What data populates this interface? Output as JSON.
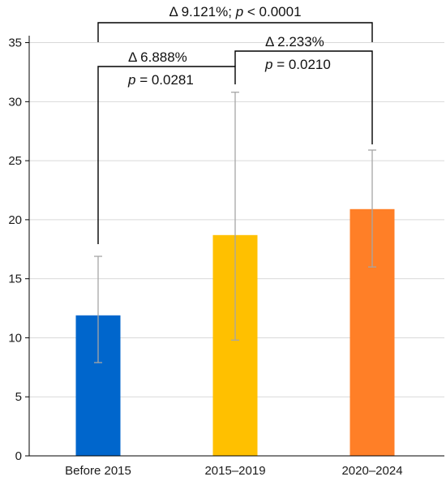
{
  "chart_data": {
    "type": "bar",
    "categories": [
      "Before 2015",
      "2015–2019",
      "2020–2024"
    ],
    "values": [
      11.9,
      18.7,
      20.9
    ],
    "error_low": [
      7.9,
      9.8,
      16.0
    ],
    "error_high": [
      16.9,
      30.8,
      25.9
    ],
    "colors": [
      "#0066cc",
      "#ffc000",
      "#ff7f27"
    ],
    "ylim": [
      0,
      36
    ],
    "yticks": [
      "0",
      "5",
      "10",
      "15",
      "20",
      "25",
      "30",
      "35"
    ],
    "ytick_values": [
      0,
      5,
      10,
      15,
      20,
      25,
      30,
      35
    ],
    "grid": true,
    "title": "",
    "xlabel": "",
    "ylabel": "",
    "annotations": [
      {
        "from": 0,
        "to": 2,
        "delta_text": "Δ 9.121%; ",
        "p_label": "p",
        "p_text": " < 0.0001"
      },
      {
        "from": 0,
        "to": 1,
        "delta_text": "Δ 6.888%",
        "p_label": "p",
        "p_text": " = 0.0281"
      },
      {
        "from": 1,
        "to": 2,
        "delta_text": "Δ 2.233%",
        "p_label": "p",
        "p_text": " = 0.0210"
      }
    ]
  }
}
